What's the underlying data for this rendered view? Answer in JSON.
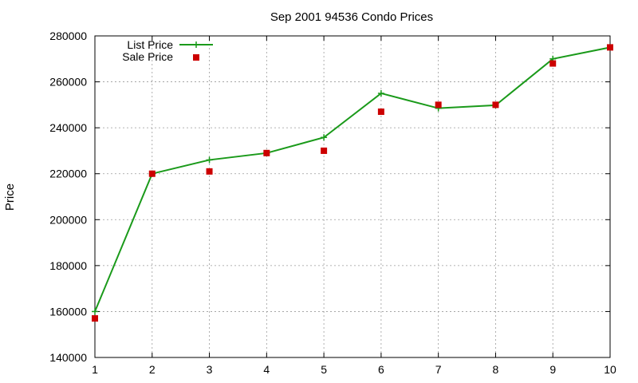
{
  "chart_data": {
    "type": "line",
    "title": "Sep 2001 94536 Condo Prices",
    "xlabel": "",
    "ylabel": "Price",
    "x": [
      1,
      2,
      3,
      4,
      5,
      6,
      7,
      8,
      9,
      10
    ],
    "xlim": [
      1,
      10
    ],
    "ylim": [
      140000,
      280000
    ],
    "xticks": [
      "1",
      "2",
      "3",
      "4",
      "5",
      "6",
      "7",
      "8",
      "9",
      "10"
    ],
    "yticks": [
      "140000",
      "160000",
      "180000",
      "200000",
      "220000",
      "240000",
      "260000",
      "280000"
    ],
    "grid": true,
    "legend_position": "top-left",
    "series": [
      {
        "name": "List Price",
        "style": "lines+crosses",
        "color": "#1a9a1a",
        "values": [
          160000,
          220000,
          226000,
          229000,
          235800,
          255000,
          248500,
          249800,
          270000,
          275000
        ]
      },
      {
        "name": "Sale Price",
        "style": "squares",
        "color": "#cc0000",
        "values": [
          157000,
          220000,
          221000,
          229000,
          230000,
          247000,
          250000,
          250000,
          268000,
          275000
        ]
      }
    ]
  }
}
